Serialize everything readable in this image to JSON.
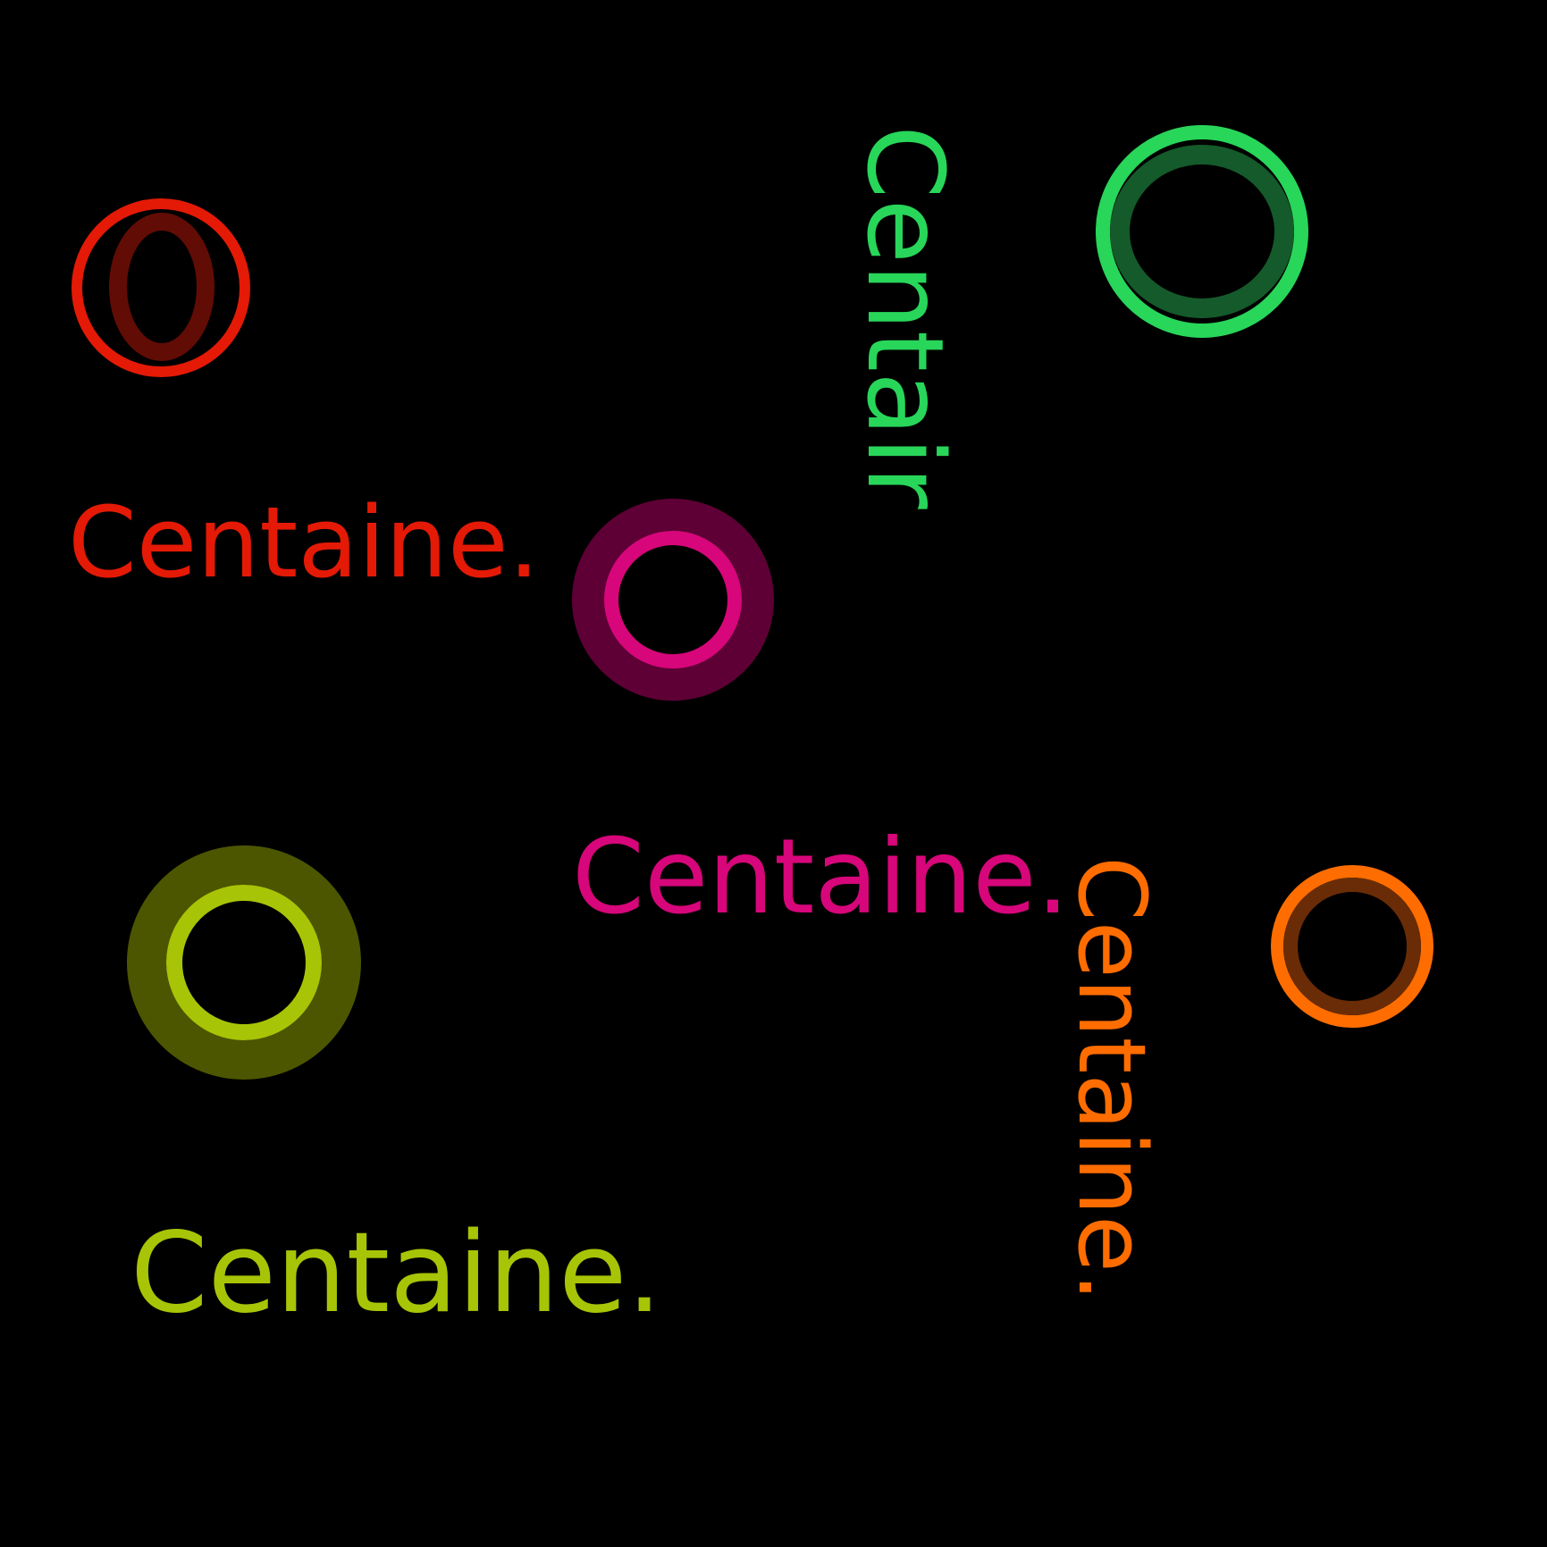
{
  "background_color": "#000000",
  "labels": {
    "red": {
      "text": "Centaine.",
      "color": "#e41a06"
    },
    "magenta": {
      "text": "Centaine.",
      "color": "#d7067a"
    },
    "yellow_green": {
      "text": "Centaine.",
      "color": "#a8c406"
    },
    "green_vertical": {
      "text": "Centair",
      "color": "#28d65a"
    },
    "orange_vertical": {
      "text": "Centaine.",
      "color": "#ff6d00"
    }
  },
  "rings": {
    "red": {
      "outer_color": "#e41a06",
      "inner_color": "#620c06",
      "icon": "ring-icon"
    },
    "green": {
      "outer_color": "#28d65a",
      "inner_color": "#145a2a",
      "icon": "ring-icon"
    },
    "magenta": {
      "outer_color": "#5e0035",
      "inner_color": "#d7067a",
      "icon": "ring-icon"
    },
    "yellow_green": {
      "outer_color": "#4c5600",
      "inner_color": "#a8c406",
      "icon": "ring-icon"
    },
    "orange": {
      "outer_color": "#ff6d00",
      "inner_color": "#6a2c06",
      "icon": "ring-icon"
    }
  }
}
